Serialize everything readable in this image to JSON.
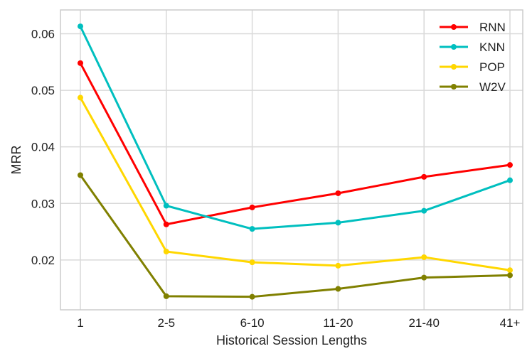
{
  "chart_data": {
    "type": "line",
    "title": "",
    "xlabel": "Historical Session Lengths",
    "ylabel": "MRR",
    "categories": [
      "1",
      "2-5",
      "6-10",
      "11-20",
      "21-40",
      "41+"
    ],
    "ylim": [
      0.0112,
      0.0642
    ],
    "yticks": [
      0.02,
      0.03,
      0.04,
      0.05,
      0.06
    ],
    "ytick_labels": [
      "0.02",
      "0.03",
      "0.04",
      "0.05",
      "0.06"
    ],
    "grid": true,
    "legend_position": "top-right",
    "series": [
      {
        "name": "RNN",
        "color": "#ff0000",
        "values": [
          0.0548,
          0.0263,
          0.0293,
          0.0318,
          0.0347,
          0.0368
        ]
      },
      {
        "name": "KNN",
        "color": "#00bfbf",
        "values": [
          0.0613,
          0.0296,
          0.0255,
          0.0266,
          0.0287,
          0.0341
        ]
      },
      {
        "name": "POP",
        "color": "#ffd700",
        "values": [
          0.0487,
          0.0215,
          0.0196,
          0.019,
          0.0205,
          0.0182
        ]
      },
      {
        "name": "W2V",
        "color": "#808000",
        "values": [
          0.035,
          0.0136,
          0.0135,
          0.0149,
          0.0169,
          0.0173
        ]
      }
    ]
  }
}
